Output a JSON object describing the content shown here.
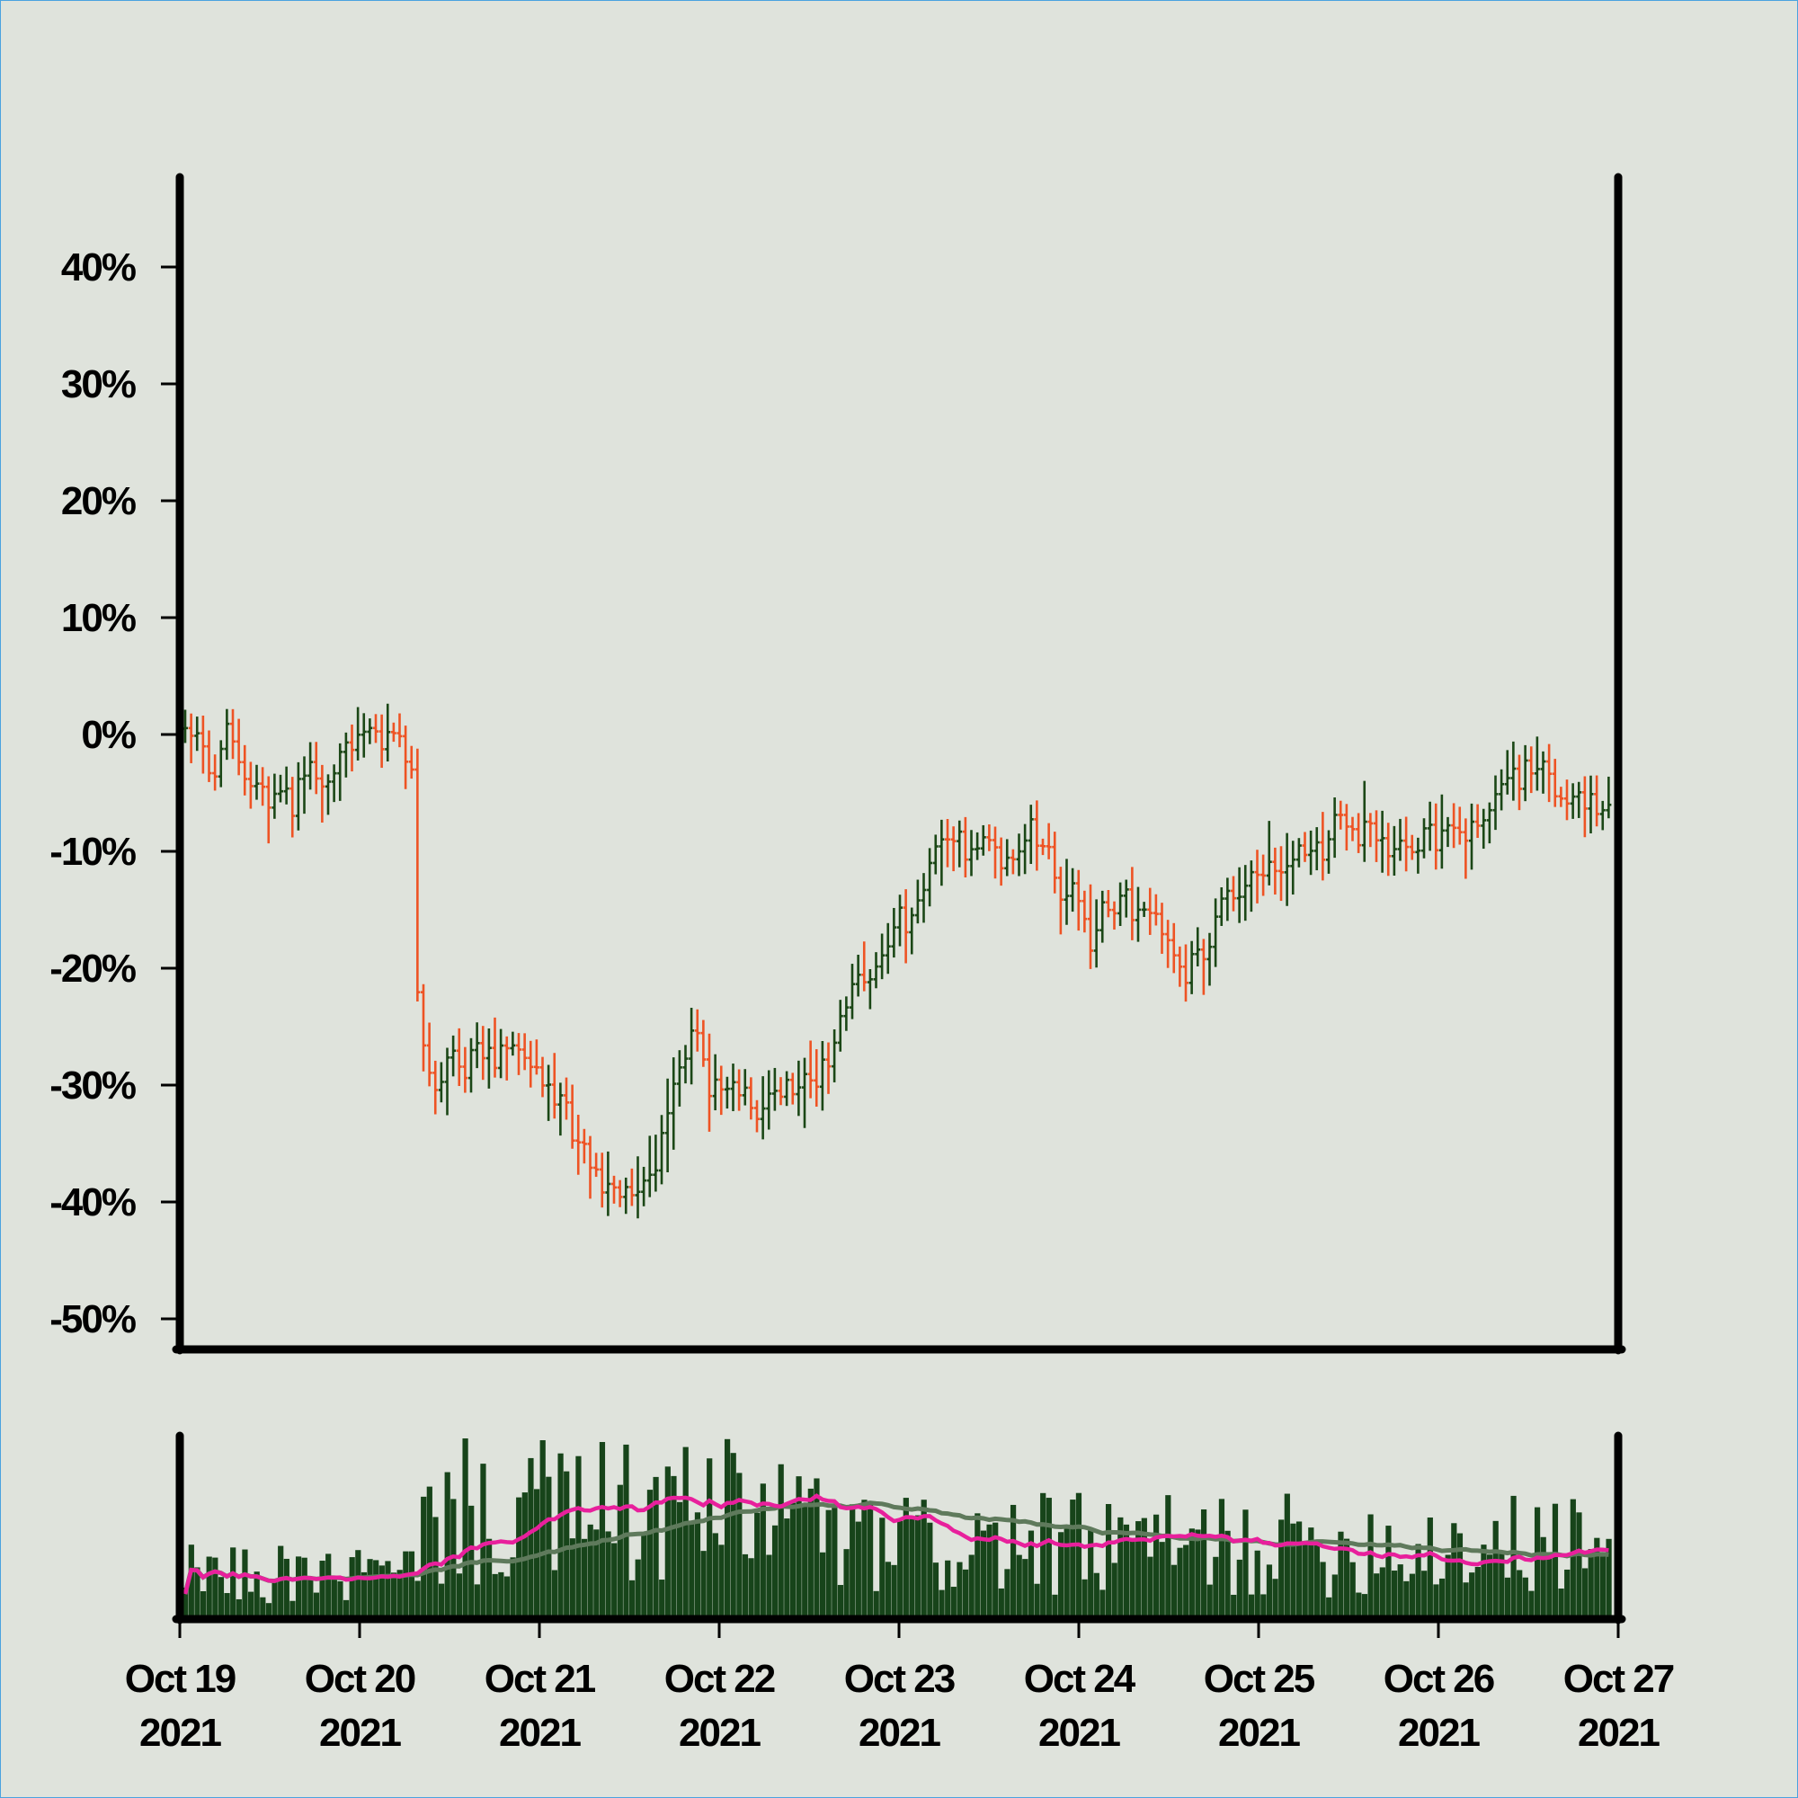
{
  "chart_data": [
    {
      "type": "ohlc",
      "panel": "price",
      "title": "",
      "xlabel": "",
      "ylabel": "",
      "ylim": [
        -50,
        45
      ],
      "y_ticks": [
        40,
        30,
        20,
        10,
        0,
        -10,
        -20,
        -30,
        -40,
        -50
      ],
      "y_tick_labels": [
        "40%",
        "30%",
        "20%",
        "10%",
        "0%",
        "-10%",
        "-20%",
        "-30%",
        "-40%",
        "-50%"
      ],
      "x_range": [
        "2021-10-19",
        "2021-10-27"
      ],
      "bars_per_day": 30,
      "up_color": "#1b4716",
      "down_color": "#ee5324",
      "anchors": [
        {
          "day": 0.0,
          "close": 0
        },
        {
          "day": 0.25,
          "close": 0
        },
        {
          "day": 0.4,
          "close": -3
        },
        {
          "day": 0.6,
          "close": -6
        },
        {
          "day": 0.8,
          "close": -2
        },
        {
          "day": 1.0,
          "close": 0
        },
        {
          "day": 1.2,
          "close": -1
        },
        {
          "day": 1.3,
          "close": -3
        },
        {
          "day": 1.32,
          "close": -26
        },
        {
          "day": 1.55,
          "close": -30
        },
        {
          "day": 1.7,
          "close": -28
        },
        {
          "day": 1.95,
          "close": -27
        },
        {
          "day": 2.2,
          "close": -34
        },
        {
          "day": 2.45,
          "close": -38
        },
        {
          "day": 2.65,
          "close": -35
        },
        {
          "day": 2.9,
          "close": -28
        },
        {
          "day": 3.15,
          "close": -32
        },
        {
          "day": 3.35,
          "close": -30
        },
        {
          "day": 3.6,
          "close": -29
        },
        {
          "day": 3.8,
          "close": -20
        },
        {
          "day": 4.05,
          "close": -15
        },
        {
          "day": 4.3,
          "close": -8
        },
        {
          "day": 4.55,
          "close": -11
        },
        {
          "day": 4.85,
          "close": -10
        },
        {
          "day": 5.1,
          "close": -17
        },
        {
          "day": 5.35,
          "close": -13
        },
        {
          "day": 5.55,
          "close": -19
        },
        {
          "day": 5.85,
          "close": -14
        },
        {
          "day": 6.15,
          "close": -10
        },
        {
          "day": 6.45,
          "close": -8
        },
        {
          "day": 6.75,
          "close": -9
        },
        {
          "day": 7.05,
          "close": -10
        },
        {
          "day": 7.3,
          "close": -6
        },
        {
          "day": 7.5,
          "close": -2
        },
        {
          "day": 7.7,
          "close": -6
        },
        {
          "day": 8.0,
          "close": -7
        }
      ]
    },
    {
      "type": "bar",
      "panel": "volume",
      "title": "",
      "ylabel": "",
      "bar_color": "#17441a",
      "moving_averages": [
        {
          "color": "#e8209c",
          "window": "short"
        },
        {
          "color": "#5f7a5c",
          "window": "long"
        }
      ],
      "x_ticks": [
        {
          "line1": "Oct 19",
          "line2": "2021"
        },
        {
          "line1": "Oct 20",
          "line2": "2021"
        },
        {
          "line1": "Oct 21",
          "line2": "2021"
        },
        {
          "line1": "Oct 22",
          "line2": "2021"
        },
        {
          "line1": "Oct 23",
          "line2": "2021"
        },
        {
          "line1": "Oct 24",
          "line2": "2021"
        },
        {
          "line1": "Oct 25",
          "line2": "2021"
        },
        {
          "line1": "Oct 26",
          "line2": "2021"
        },
        {
          "line1": "Oct 27",
          "line2": "2021"
        }
      ]
    }
  ]
}
